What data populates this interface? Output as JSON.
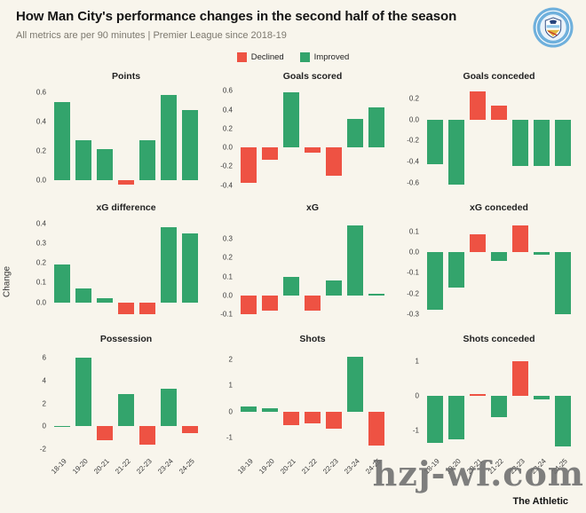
{
  "header": {
    "title": "How Man City's performance changes in the second half of the season",
    "subtitle": "All metrics are per 90 minutes | Premier League since 2018-19"
  },
  "legend": {
    "declined_label": "Declined",
    "improved_label": "Improved"
  },
  "colors": {
    "declined": "#ee5243",
    "improved": "#33a46c",
    "background": "#f8f5ec",
    "badge_blue": "#6fb0dc"
  },
  "ylabel": "Change",
  "watermark": "hzj-wf.com",
  "footer": {
    "credit": "The Athletic"
  },
  "chart_data": [
    {
      "type": "bar",
      "title": "Points",
      "categories": [
        "18-19",
        "19-20",
        "20-21",
        "21-22",
        "22-23",
        "23-24",
        "24-25"
      ],
      "values": [
        0.53,
        0.27,
        0.21,
        -0.03,
        0.27,
        0.58,
        0.48
      ],
      "statuses": [
        "improved",
        "improved",
        "improved",
        "declined",
        "improved",
        "improved",
        "improved"
      ],
      "yticks": [
        0.6,
        0.4,
        0.2,
        0.0
      ],
      "ytick_labels": [
        "0.6",
        "0.4",
        "0.2",
        "0.0"
      ],
      "ylim": [
        -0.07,
        0.64
      ],
      "show_x_labels": false,
      "grid": false,
      "legend_position": "top"
    },
    {
      "type": "bar",
      "title": "Goals scored",
      "categories": [
        "18-19",
        "19-20",
        "20-21",
        "21-22",
        "22-23",
        "23-24",
        "24-25"
      ],
      "values": [
        -0.38,
        -0.13,
        0.58,
        -0.06,
        -0.3,
        0.3,
        0.42
      ],
      "statuses": [
        "declined",
        "declined",
        "improved",
        "declined",
        "declined",
        "improved",
        "improved"
      ],
      "yticks": [
        0.6,
        0.4,
        0.2,
        0.0,
        -0.2,
        -0.4
      ],
      "ytick_labels": [
        "0.6",
        "0.4",
        "0.2",
        "0.0",
        "-0.2",
        "-0.4"
      ],
      "ylim": [
        -0.46,
        0.65
      ],
      "show_x_labels": false,
      "grid": false
    },
    {
      "type": "bar",
      "title": "Goals conceded",
      "categories": [
        "18-19",
        "19-20",
        "20-21",
        "21-22",
        "22-23",
        "23-24",
        "24-25"
      ],
      "values": [
        -0.43,
        -0.62,
        0.27,
        0.13,
        -0.44,
        -0.44,
        -0.44
      ],
      "statuses": [
        "improved",
        "improved",
        "declined",
        "declined",
        "improved",
        "improved",
        "improved"
      ],
      "yticks": [
        0.2,
        0.0,
        -0.2,
        -0.4,
        -0.6
      ],
      "ytick_labels": [
        "0.2",
        "0.0",
        "-0.2",
        "-0.4",
        "-0.6"
      ],
      "ylim": [
        -0.68,
        0.32
      ],
      "show_x_labels": false,
      "grid": false
    },
    {
      "type": "bar",
      "title": "xG difference",
      "categories": [
        "18-19",
        "19-20",
        "20-21",
        "21-22",
        "22-23",
        "23-24",
        "24-25"
      ],
      "values": [
        0.19,
        0.07,
        0.02,
        -0.06,
        -0.06,
        0.38,
        0.35
      ],
      "statuses": [
        "improved",
        "improved",
        "improved",
        "declined",
        "declined",
        "improved",
        "improved"
      ],
      "yticks": [
        0.4,
        0.3,
        0.2,
        0.1,
        0.0
      ],
      "ytick_labels": [
        "0.4",
        "0.3",
        "0.2",
        "0.1",
        "0.0"
      ],
      "ylim": [
        -0.1,
        0.43
      ],
      "show_x_labels": false,
      "grid": false
    },
    {
      "type": "bar",
      "title": "xG",
      "categories": [
        "18-19",
        "19-20",
        "20-21",
        "21-22",
        "22-23",
        "23-24",
        "24-25"
      ],
      "values": [
        -0.1,
        -0.08,
        0.1,
        -0.08,
        0.08,
        0.37,
        0.01
      ],
      "statuses": [
        "declined",
        "declined",
        "improved",
        "declined",
        "improved",
        "improved",
        "improved"
      ],
      "yticks": [
        0.3,
        0.2,
        0.1,
        0.0,
        -0.1
      ],
      "ytick_labels": [
        "0.3",
        "0.2",
        "0.1",
        "0.0",
        "-0.1"
      ],
      "ylim": [
        -0.14,
        0.41
      ],
      "show_x_labels": false,
      "grid": false
    },
    {
      "type": "bar",
      "title": "xG conceded",
      "categories": [
        "18-19",
        "19-20",
        "20-21",
        "21-22",
        "22-23",
        "23-24",
        "24-25"
      ],
      "values": [
        -0.28,
        -0.17,
        0.09,
        -0.04,
        0.13,
        -0.01,
        -0.3
      ],
      "statuses": [
        "improved",
        "improved",
        "declined",
        "improved",
        "declined",
        "improved",
        "improved"
      ],
      "yticks": [
        0.1,
        0.0,
        -0.1,
        -0.2,
        -0.3
      ],
      "ytick_labels": [
        "0.1",
        "0.0",
        "-0.1",
        "-0.2",
        "-0.3"
      ],
      "ylim": [
        -0.34,
        0.17
      ],
      "show_x_labels": false,
      "grid": false
    },
    {
      "type": "bar",
      "title": "Possession",
      "categories": [
        "18-19",
        "19-20",
        "20-21",
        "21-22",
        "22-23",
        "23-24",
        "24-25"
      ],
      "values": [
        0.05,
        6.0,
        -1.2,
        2.8,
        -1.6,
        3.3,
        -0.6
      ],
      "statuses": [
        "improved",
        "improved",
        "declined",
        "improved",
        "declined",
        "improved",
        "declined"
      ],
      "yticks": [
        6,
        4,
        2,
        0,
        -2
      ],
      "ytick_labels": [
        "6",
        "4",
        "2",
        "0",
        "-2"
      ],
      "ylim": [
        -2.4,
        6.8
      ],
      "show_x_labels": true,
      "grid": false
    },
    {
      "type": "bar",
      "title": "Shots",
      "categories": [
        "18-19",
        "19-20",
        "20-21",
        "21-22",
        "22-23",
        "23-24",
        "24-25"
      ],
      "values": [
        0.2,
        0.12,
        -0.5,
        -0.45,
        -0.65,
        2.1,
        -1.3
      ],
      "statuses": [
        "improved",
        "improved",
        "declined",
        "declined",
        "declined",
        "improved",
        "declined"
      ],
      "yticks": [
        2,
        1,
        0,
        -1
      ],
      "ytick_labels": [
        "2",
        "1",
        "0",
        "-1"
      ],
      "ylim": [
        -1.6,
        2.4
      ],
      "show_x_labels": true,
      "grid": false
    },
    {
      "type": "bar",
      "title": "Shots conceded",
      "categories": [
        "18-19",
        "19-20",
        "20-21",
        "21-22",
        "22-23",
        "23-24",
        "24-25"
      ],
      "values": [
        -1.35,
        -1.25,
        0.06,
        -0.6,
        1.0,
        -0.1,
        -1.45
      ],
      "statuses": [
        "improved",
        "improved",
        "declined",
        "improved",
        "declined",
        "improved",
        "improved"
      ],
      "yticks": [
        1,
        0,
        -1
      ],
      "ytick_labels": [
        "1",
        "0",
        "-1"
      ],
      "ylim": [
        -1.65,
        1.35
      ],
      "show_x_labels": true,
      "grid": false
    }
  ]
}
